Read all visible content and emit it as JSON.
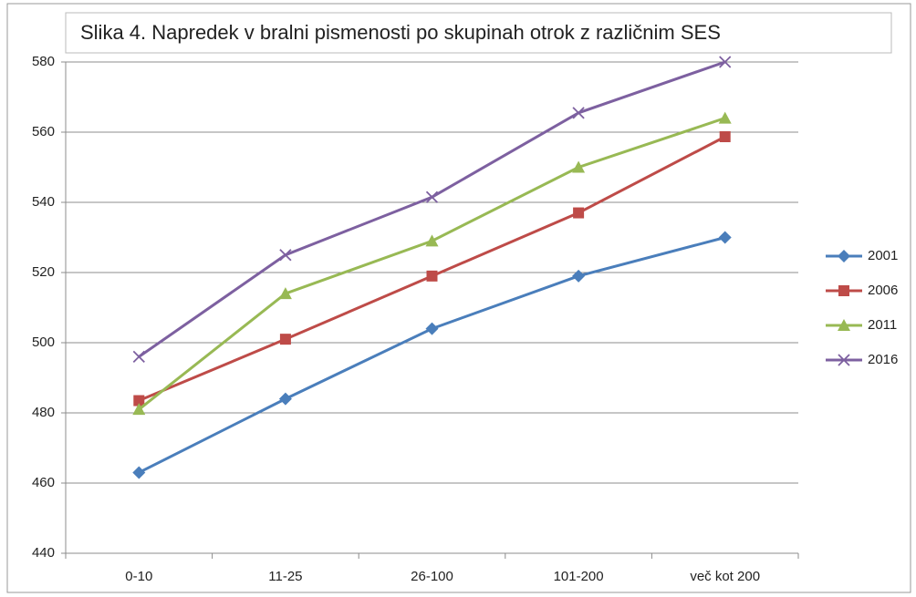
{
  "chart_data": {
    "type": "line",
    "title": "Slika 4. Napredek v bralni pismenosti po skupinah otrok z različnim SES",
    "categories": [
      "0-10",
      "11-25",
      "26-100",
      "101-200",
      "več kot 200"
    ],
    "series": [
      {
        "name": "2001",
        "color": "#4a7ebb",
        "marker": "diamond",
        "values": [
          463,
          484,
          504,
          519,
          530
        ]
      },
      {
        "name": "2006",
        "color": "#be4b48",
        "marker": "square",
        "values": [
          483.5,
          501,
          519,
          537,
          558.7
        ]
      },
      {
        "name": "2011",
        "color": "#98b954",
        "marker": "triangle",
        "values": [
          481,
          514,
          529,
          550,
          564
        ]
      },
      {
        "name": "2016",
        "color": "#7d60a0",
        "marker": "x",
        "values": [
          496,
          525,
          541.5,
          565.5,
          580
        ]
      }
    ],
    "ylim": [
      440,
      580
    ],
    "yticks": [
      440,
      460,
      480,
      500,
      520,
      540,
      560,
      580
    ],
    "grid": true,
    "legend": "right"
  }
}
